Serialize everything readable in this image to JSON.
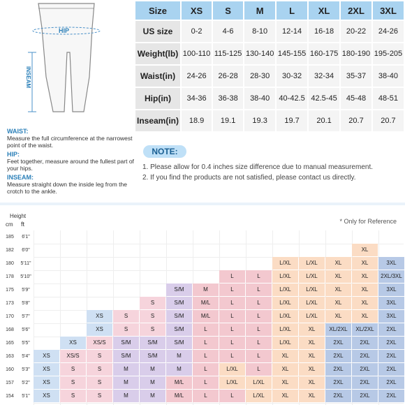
{
  "figure": {
    "hip_label": "HIP",
    "inseam_label": "INSEAM"
  },
  "definitions": [
    {
      "title": "WAIST:",
      "text": "Measure the full circumference at the narrowest point of the waist."
    },
    {
      "title": "HIP:",
      "text": "Feet together, measure around the fullest part of your hips."
    },
    {
      "title": "INSEAM:",
      "text": "Measure straight down the inside leg from the crotch to the ankle."
    }
  ],
  "size_table": {
    "header": [
      "Size",
      "XS",
      "S",
      "M",
      "L",
      "XL",
      "2XL",
      "3XL"
    ],
    "rows": [
      {
        "label": "US size",
        "values": [
          "0-2",
          "4-6",
          "8-10",
          "12-14",
          "16-18",
          "20-22",
          "24-26"
        ]
      },
      {
        "label": "Weight(lb)",
        "values": [
          "100-110",
          "115-125",
          "130-140",
          "145-155",
          "160-175",
          "180-190",
          "195-205"
        ]
      },
      {
        "label": "Waist(in)",
        "values": [
          "24-26",
          "26-28",
          "28-30",
          "30-32",
          "32-34",
          "35-37",
          "38-40"
        ]
      },
      {
        "label": "Hip(in)",
        "values": [
          "34-36",
          "36-38",
          "38-40",
          "40-42.5",
          "42.5-45",
          "45-48",
          "48-51"
        ]
      },
      {
        "label": "Inseam(in)",
        "values": [
          "18.9",
          "19.1",
          "19.3",
          "19.7",
          "20.1",
          "20.7",
          "20.7"
        ]
      }
    ]
  },
  "note": {
    "title": "NOTE:",
    "items": [
      "1. Please allow for 0.4 inches size difference due to manual measurement.",
      "2. If you find the products are not satisfied, please contact us directly."
    ]
  },
  "chart": {
    "height_title": "Height",
    "cm_label": "cm",
    "ft_label": "ft",
    "reference": "* Only for Reference",
    "colors": {
      "blue": "#cfe0f3",
      "pink": "#f6d4dc",
      "purple": "#d9cdea",
      "rose": "#f3c8cf",
      "peach": "#fbdcc4",
      "navy": "#b7c9e6"
    },
    "rows": [
      {
        "cm": "185",
        "ft": "6'1\"",
        "cells": []
      },
      {
        "cm": "182",
        "ft": "6'0\"",
        "cells": [
          {
            "c": 12,
            "t": "XL",
            "k": "peach"
          }
        ]
      },
      {
        "cm": "180",
        "ft": "5'11\"",
        "cells": [
          {
            "c": 9,
            "t": "L/XL",
            "k": "peach"
          },
          {
            "c": 10,
            "t": "L/XL",
            "k": "peach"
          },
          {
            "c": 11,
            "t": "XL",
            "k": "peach"
          },
          {
            "c": 12,
            "t": "XL",
            "k": "peach"
          },
          {
            "c": 13,
            "t": "3XL",
            "k": "navy"
          }
        ]
      },
      {
        "cm": "178",
        "ft": "5'10\"",
        "cells": [
          {
            "c": 7,
            "t": "L",
            "k": "rose"
          },
          {
            "c": 8,
            "t": "L",
            "k": "rose"
          },
          {
            "c": 9,
            "t": "L/XL",
            "k": "peach"
          },
          {
            "c": 10,
            "t": "L/XL",
            "k": "peach"
          },
          {
            "c": 11,
            "t": "XL",
            "k": "peach"
          },
          {
            "c": 12,
            "t": "XL",
            "k": "peach"
          },
          {
            "c": 13,
            "t": "2XL/3XL",
            "k": "navy"
          }
        ]
      },
      {
        "cm": "175",
        "ft": "5'9\"",
        "cells": [
          {
            "c": 5,
            "t": "S/M",
            "k": "purple"
          },
          {
            "c": 6,
            "t": "M",
            "k": "rose"
          },
          {
            "c": 7,
            "t": "L",
            "k": "rose"
          },
          {
            "c": 8,
            "t": "L",
            "k": "rose"
          },
          {
            "c": 9,
            "t": "L/XL",
            "k": "peach"
          },
          {
            "c": 10,
            "t": "L/XL",
            "k": "peach"
          },
          {
            "c": 11,
            "t": "XL",
            "k": "peach"
          },
          {
            "c": 12,
            "t": "XL",
            "k": "peach"
          },
          {
            "c": 13,
            "t": "3XL",
            "k": "navy"
          }
        ]
      },
      {
        "cm": "173",
        "ft": "5'8\"",
        "cells": [
          {
            "c": 4,
            "t": "S",
            "k": "pink"
          },
          {
            "c": 5,
            "t": "S/M",
            "k": "purple"
          },
          {
            "c": 6,
            "t": "M/L",
            "k": "rose"
          },
          {
            "c": 7,
            "t": "L",
            "k": "rose"
          },
          {
            "c": 8,
            "t": "L",
            "k": "rose"
          },
          {
            "c": 9,
            "t": "L/XL",
            "k": "peach"
          },
          {
            "c": 10,
            "t": "L/XL",
            "k": "peach"
          },
          {
            "c": 11,
            "t": "XL",
            "k": "peach"
          },
          {
            "c": 12,
            "t": "XL",
            "k": "peach"
          },
          {
            "c": 13,
            "t": "3XL",
            "k": "navy"
          }
        ]
      },
      {
        "cm": "170",
        "ft": "5'7\"",
        "cells": [
          {
            "c": 2,
            "t": "XS",
            "k": "blue"
          },
          {
            "c": 3,
            "t": "S",
            "k": "pink"
          },
          {
            "c": 4,
            "t": "S",
            "k": "pink"
          },
          {
            "c": 5,
            "t": "S/M",
            "k": "purple"
          },
          {
            "c": 6,
            "t": "M/L",
            "k": "rose"
          },
          {
            "c": 7,
            "t": "L",
            "k": "rose"
          },
          {
            "c": 8,
            "t": "L",
            "k": "rose"
          },
          {
            "c": 9,
            "t": "L/XL",
            "k": "peach"
          },
          {
            "c": 10,
            "t": "L/XL",
            "k": "peach"
          },
          {
            "c": 11,
            "t": "XL",
            "k": "peach"
          },
          {
            "c": 12,
            "t": "XL",
            "k": "peach"
          },
          {
            "c": 13,
            "t": "3XL",
            "k": "navy"
          }
        ]
      },
      {
        "cm": "168",
        "ft": "5'6\"",
        "cells": [
          {
            "c": 2,
            "t": "XS",
            "k": "blue"
          },
          {
            "c": 3,
            "t": "S",
            "k": "pink"
          },
          {
            "c": 4,
            "t": "S",
            "k": "pink"
          },
          {
            "c": 5,
            "t": "S/M",
            "k": "purple"
          },
          {
            "c": 6,
            "t": "L",
            "k": "rose"
          },
          {
            "c": 7,
            "t": "L",
            "k": "rose"
          },
          {
            "c": 8,
            "t": "L",
            "k": "rose"
          },
          {
            "c": 9,
            "t": "L/XL",
            "k": "peach"
          },
          {
            "c": 10,
            "t": "XL",
            "k": "peach"
          },
          {
            "c": 11,
            "t": "XL/2XL",
            "k": "navy"
          },
          {
            "c": 12,
            "t": "XL/2XL",
            "k": "navy"
          },
          {
            "c": 13,
            "t": "2XL",
            "k": "navy"
          }
        ]
      },
      {
        "cm": "165",
        "ft": "5'5\"",
        "cells": [
          {
            "c": 1,
            "t": "XS",
            "k": "blue"
          },
          {
            "c": 2,
            "t": "XS/S",
            "k": "pink"
          },
          {
            "c": 3,
            "t": "S/M",
            "k": "purple"
          },
          {
            "c": 4,
            "t": "S/M",
            "k": "purple"
          },
          {
            "c": 5,
            "t": "S/M",
            "k": "purple"
          },
          {
            "c": 6,
            "t": "L",
            "k": "rose"
          },
          {
            "c": 7,
            "t": "L",
            "k": "rose"
          },
          {
            "c": 8,
            "t": "L",
            "k": "rose"
          },
          {
            "c": 9,
            "t": "L/XL",
            "k": "peach"
          },
          {
            "c": 10,
            "t": "XL",
            "k": "peach"
          },
          {
            "c": 11,
            "t": "2XL",
            "k": "navy"
          },
          {
            "c": 12,
            "t": "2XL",
            "k": "navy"
          },
          {
            "c": 13,
            "t": "2XL",
            "k": "navy"
          }
        ]
      },
      {
        "cm": "163",
        "ft": "5'4\"",
        "cells": [
          {
            "c": 0,
            "t": "XS",
            "k": "blue"
          },
          {
            "c": 1,
            "t": "XS/S",
            "k": "pink"
          },
          {
            "c": 2,
            "t": "S",
            "k": "pink"
          },
          {
            "c": 3,
            "t": "S/M",
            "k": "purple"
          },
          {
            "c": 4,
            "t": "S/M",
            "k": "purple"
          },
          {
            "c": 5,
            "t": "M",
            "k": "purple"
          },
          {
            "c": 6,
            "t": "L",
            "k": "rose"
          },
          {
            "c": 7,
            "t": "L",
            "k": "rose"
          },
          {
            "c": 8,
            "t": "L",
            "k": "rose"
          },
          {
            "c": 9,
            "t": "XL",
            "k": "peach"
          },
          {
            "c": 10,
            "t": "XL",
            "k": "peach"
          },
          {
            "c": 11,
            "t": "2XL",
            "k": "navy"
          },
          {
            "c": 12,
            "t": "2XL",
            "k": "navy"
          },
          {
            "c": 13,
            "t": "2XL",
            "k": "navy"
          }
        ]
      },
      {
        "cm": "160",
        "ft": "5'3\"",
        "cells": [
          {
            "c": 0,
            "t": "XS",
            "k": "blue"
          },
          {
            "c": 1,
            "t": "S",
            "k": "pink"
          },
          {
            "c": 2,
            "t": "S",
            "k": "pink"
          },
          {
            "c": 3,
            "t": "M",
            "k": "purple"
          },
          {
            "c": 4,
            "t": "M",
            "k": "purple"
          },
          {
            "c": 5,
            "t": "M",
            "k": "purple"
          },
          {
            "c": 6,
            "t": "L",
            "k": "rose"
          },
          {
            "c": 7,
            "t": "L/XL",
            "k": "peach"
          },
          {
            "c": 8,
            "t": "L",
            "k": "rose"
          },
          {
            "c": 9,
            "t": "XL",
            "k": "peach"
          },
          {
            "c": 10,
            "t": "XL",
            "k": "peach"
          },
          {
            "c": 11,
            "t": "2XL",
            "k": "navy"
          },
          {
            "c": 12,
            "t": "2XL",
            "k": "navy"
          },
          {
            "c": 13,
            "t": "2XL",
            "k": "navy"
          }
        ]
      },
      {
        "cm": "157",
        "ft": "5'2\"",
        "cells": [
          {
            "c": 0,
            "t": "XS",
            "k": "blue"
          },
          {
            "c": 1,
            "t": "S",
            "k": "pink"
          },
          {
            "c": 2,
            "t": "S",
            "k": "pink"
          },
          {
            "c": 3,
            "t": "M",
            "k": "purple"
          },
          {
            "c": 4,
            "t": "M",
            "k": "purple"
          },
          {
            "c": 5,
            "t": "M/L",
            "k": "rose"
          },
          {
            "c": 6,
            "t": "L",
            "k": "rose"
          },
          {
            "c": 7,
            "t": "L/XL",
            "k": "peach"
          },
          {
            "c": 8,
            "t": "L/XL",
            "k": "peach"
          },
          {
            "c": 9,
            "t": "XL",
            "k": "peach"
          },
          {
            "c": 10,
            "t": "XL",
            "k": "peach"
          },
          {
            "c": 11,
            "t": "2XL",
            "k": "navy"
          },
          {
            "c": 12,
            "t": "2XL",
            "k": "navy"
          },
          {
            "c": 13,
            "t": "2XL",
            "k": "navy"
          }
        ]
      },
      {
        "cm": "154",
        "ft": "5'1\"",
        "cells": [
          {
            "c": 0,
            "t": "XS",
            "k": "blue"
          },
          {
            "c": 1,
            "t": "S",
            "k": "pink"
          },
          {
            "c": 2,
            "t": "S",
            "k": "pink"
          },
          {
            "c": 3,
            "t": "M",
            "k": "purple"
          },
          {
            "c": 4,
            "t": "M",
            "k": "purple"
          },
          {
            "c": 5,
            "t": "M/L",
            "k": "rose"
          },
          {
            "c": 6,
            "t": "L",
            "k": "rose"
          },
          {
            "c": 7,
            "t": "L",
            "k": "rose"
          },
          {
            "c": 8,
            "t": "L/XL",
            "k": "peach"
          },
          {
            "c": 9,
            "t": "XL",
            "k": "peach"
          },
          {
            "c": 10,
            "t": "XL",
            "k": "peach"
          },
          {
            "c": 11,
            "t": "2XL",
            "k": "navy"
          },
          {
            "c": 12,
            "t": "2XL",
            "k": "navy"
          },
          {
            "c": 13,
            "t": "2XL",
            "k": "navy"
          }
        ]
      }
    ]
  }
}
